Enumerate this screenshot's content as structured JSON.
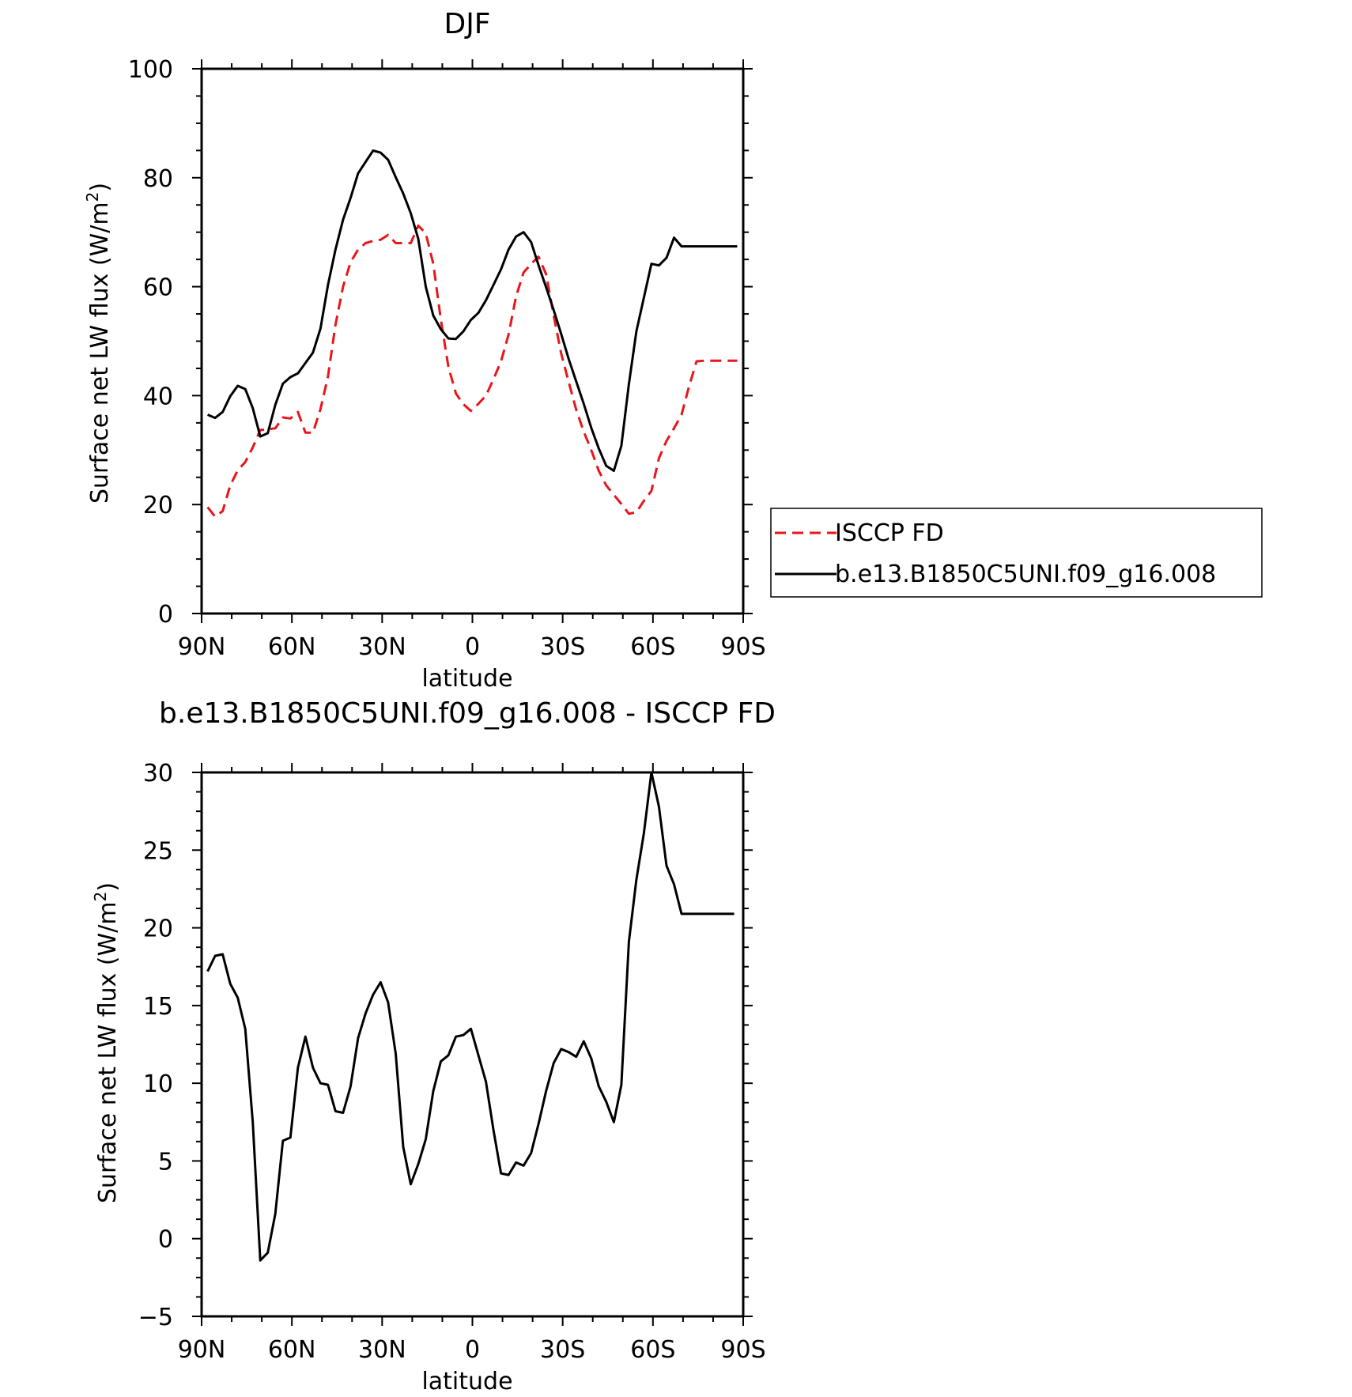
{
  "chart_data": [
    {
      "type": "line",
      "title": "DJF",
      "xlabel": "latitude",
      "ylabel": "Surface net LW flux (W/m",
      "ylabel_sup": "2",
      "ylabel_close": ")",
      "xlim": [
        90,
        -90
      ],
      "ylim": [
        0,
        100
      ],
      "xticks": [
        90,
        60,
        30,
        0,
        -30,
        -60,
        -90
      ],
      "xtick_labels": [
        "90N",
        "60N",
        "30N",
        "0",
        "30S",
        "60S",
        "90S"
      ],
      "yticks": [
        0,
        20,
        40,
        60,
        80,
        100
      ],
      "ytick_labels": [
        "0",
        "20",
        "40",
        "60",
        "80",
        "100"
      ],
      "legend_position": "right",
      "series": [
        {
          "name": "ISCCP FD",
          "color": "#e8161b",
          "dash": "dashed",
          "x": [
            88,
            85.5,
            83,
            80.5,
            78,
            75.5,
            73,
            70.5,
            68,
            65.5,
            63,
            60.5,
            58,
            55.5,
            53,
            50.5,
            48,
            45.5,
            43,
            40.5,
            38,
            35.5,
            33,
            30.5,
            28,
            25.5,
            23,
            20.5,
            18,
            15.5,
            13,
            10.5,
            8,
            5.5,
            3,
            0.5,
            -2,
            -4.5,
            -7,
            -9.5,
            -12,
            -14.5,
            -17,
            -19.5,
            -22,
            -24.5,
            -27,
            -29.5,
            -32,
            -34.5,
            -37,
            -39.5,
            -42,
            -44.5,
            -47,
            -49.5,
            -52,
            -54.5,
            -57,
            -59.5,
            -62,
            -64.5,
            -67,
            -69.5,
            -72,
            -74.5,
            -77,
            -79.5,
            -82,
            -84.5,
            -87,
            -88
          ],
          "y": [
            19.5,
            17.8,
            18.8,
            23.5,
            26.3,
            27.8,
            30.5,
            33.7,
            33.8,
            34,
            36,
            35.8,
            37,
            33.2,
            33.2,
            37.5,
            43.5,
            53,
            60,
            64.5,
            66.8,
            68,
            68.4,
            68.6,
            69.5,
            68,
            68,
            68,
            71.2,
            69.8,
            64.2,
            54,
            45.3,
            40.4,
            38.4,
            37.2,
            38.5,
            40,
            43,
            46.3,
            51.2,
            58.2,
            62.6,
            64.2,
            65.5,
            62.3,
            54.7,
            47.7,
            42.5,
            37.4,
            33.4,
            30,
            26.2,
            23.5,
            21.8,
            20.1,
            18.3,
            18.6,
            20.7,
            22.5,
            28.5,
            31.7,
            34,
            36.5,
            41.7,
            46.3,
            46.4,
            46.4,
            46.4,
            46.4,
            46.4,
            46.4
          ]
        },
        {
          "name": "b.e13.B1850C5UNI.f09_g16.008",
          "color": "#000000",
          "dash": "solid",
          "x": [
            88,
            85.5,
            83,
            80.5,
            78,
            75.5,
            73,
            70.5,
            68,
            65.5,
            63,
            60.5,
            58,
            55.5,
            53,
            50.5,
            48,
            45.5,
            43,
            40.5,
            38,
            35.5,
            33,
            30.5,
            28,
            25.5,
            23,
            20.5,
            18,
            15.5,
            13,
            10.5,
            8,
            5.5,
            3,
            0.5,
            -2,
            -4.5,
            -7,
            -9.5,
            -12,
            -14.5,
            -17,
            -19.5,
            -22,
            -24.5,
            -27,
            -29.5,
            -32,
            -34.5,
            -37,
            -39.5,
            -42,
            -44.5,
            -47,
            -49.5,
            -52,
            -54.5,
            -57,
            -59.5,
            -62,
            -64.5,
            -67,
            -69.5,
            -72,
            -74.5,
            -77,
            -79.5,
            -82,
            -84.5,
            -87,
            -88
          ],
          "y": [
            36.5,
            35.9,
            37,
            39.9,
            41.8,
            41.2,
            37.7,
            32.5,
            33.1,
            38.3,
            42.2,
            43.4,
            44.1,
            46,
            47.9,
            52.3,
            60.3,
            66.8,
            72.3,
            76.3,
            80.8,
            82.9,
            85,
            84.6,
            83.3,
            80.1,
            77.1,
            73.5,
            68.8,
            60,
            54.7,
            52.2,
            50.5,
            50.4,
            51.8,
            53.9,
            55.2,
            57.5,
            60.3,
            63.2,
            66.8,
            69.2,
            70,
            68.2,
            63.9,
            59.9,
            55.7,
            51.3,
            46.7,
            42.6,
            38.5,
            34.1,
            30.3,
            27.1,
            26.2,
            30.8,
            42.1,
            51.8,
            58,
            64.2,
            63.9,
            65.3,
            69,
            67.4,
            67.4,
            67.4,
            67.4,
            67.4,
            67.4,
            67.4,
            67.4,
            67.4
          ]
        }
      ]
    },
    {
      "type": "line",
      "title": "b.e13.B1850C5UNI.f09_g16.008 - ISCCP FD",
      "xlabel": "latitude",
      "ylabel": "Surface net LW flux (W/m",
      "ylabel_sup": "2",
      "ylabel_close": ")",
      "xlim": [
        90,
        -90
      ],
      "ylim": [
        -5,
        30
      ],
      "xticks": [
        90,
        60,
        30,
        0,
        -30,
        -60,
        -90
      ],
      "xtick_labels": [
        "90N",
        "60N",
        "30N",
        "0",
        "30S",
        "60S",
        "90S"
      ],
      "yticks": [
        -5,
        0,
        5,
        10,
        15,
        20,
        25,
        30
      ],
      "ytick_labels": [
        "−5",
        "0",
        "5",
        "10",
        "15",
        "20",
        "25",
        "30"
      ],
      "series": [
        {
          "color": "#000000",
          "dash": "solid",
          "x": [
            88,
            85.5,
            83,
            80.5,
            78,
            75.5,
            73,
            70.5,
            68,
            65.5,
            63,
            60.5,
            58,
            55.5,
            53,
            50.5,
            48,
            45.5,
            43,
            40.5,
            38,
            35.5,
            33,
            30.5,
            28,
            25.5,
            23,
            20.5,
            18,
            15.5,
            13,
            10.5,
            8,
            5.5,
            3,
            0.5,
            -2,
            -4.5,
            -7,
            -9.5,
            -12,
            -14.5,
            -17,
            -19.5,
            -22,
            -24.5,
            -27,
            -29.5,
            -32,
            -34.5,
            -37,
            -39.5,
            -42,
            -44.5,
            -47,
            -49.5,
            -52,
            -54.5,
            -57,
            -59.5,
            -62,
            -64.5,
            -67,
            -69.5,
            -72,
            -74.5,
            -77,
            -79.5,
            -82,
            -84.5,
            -87
          ],
          "y": [
            17.2,
            18.2,
            18.3,
            16.4,
            15.5,
            13.5,
            7.5,
            -1.4,
            -0.9,
            1.6,
            6.3,
            6.5,
            11,
            13,
            11,
            10,
            9.9,
            8.2,
            8.1,
            9.8,
            12.9,
            14.5,
            15.7,
            16.5,
            15.2,
            11.9,
            5.9,
            3.5,
            4.8,
            6.4,
            9.5,
            11.4,
            11.8,
            13,
            13.1,
            13.5,
            11.8,
            10.1,
            7,
            4.2,
            4.1,
            4.9,
            4.7,
            5.5,
            7.4,
            9.5,
            11.3,
            12.2,
            12,
            11.7,
            12.7,
            11.6,
            9.8,
            8.8,
            7.5,
            9.9,
            19.1,
            23.1,
            26.1,
            30,
            27.8,
            24,
            22.8,
            20.9,
            20.9,
            20.9,
            20.9,
            20.9,
            20.9,
            20.9,
            20.9
          ]
        }
      ]
    }
  ]
}
